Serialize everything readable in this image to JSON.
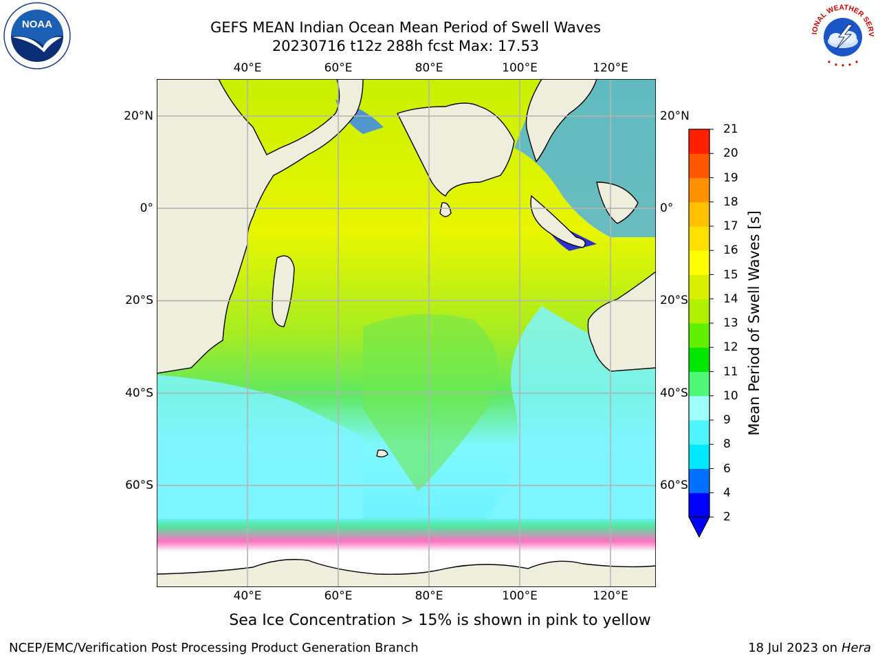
{
  "title": {
    "line1": "GEFS MEAN Indian Ocean Mean Period of Swell Waves",
    "line2": "20230716 t12z 288h fcst   Max: 17.53"
  },
  "map": {
    "lon_labels": [
      "40°E",
      "60°E",
      "80°E",
      "100°E",
      "120°E"
    ],
    "lat_labels": [
      "20°N",
      "0°",
      "20°S",
      "40°S",
      "60°S"
    ],
    "lon_values": [
      40,
      60,
      80,
      100,
      120
    ],
    "lat_values": [
      20,
      0,
      -20,
      -40,
      -60
    ],
    "lon_range": [
      20,
      130
    ],
    "lat_range": [
      28,
      -82
    ],
    "colors": {
      "land": "#efeddc",
      "grid": "#b4b4b4",
      "ice_free": "#ffffff"
    }
  },
  "colorbar": {
    "title": "Mean Period of Swell Waves [s]",
    "ticks": [
      "2",
      "4",
      "6",
      "8",
      "9",
      "10",
      "11",
      "12",
      "13",
      "14",
      "15",
      "16",
      "17",
      "18",
      "19",
      "20",
      "21"
    ],
    "colors": [
      "#0000ff",
      "#0070ff",
      "#00e8ff",
      "#50f4ff",
      "#a0fffa",
      "#50f878",
      "#00e600",
      "#60f000",
      "#b0f000",
      "#d8f000",
      "#ffff00",
      "#ffe000",
      "#ffc000",
      "#ff9000",
      "#ff5800",
      "#ff2000"
    ],
    "extend": "min"
  },
  "caption": "Sea Ice Concentration > 15% is shown in pink to yellow",
  "footer": {
    "left": "NCEP/EMC/Verification Post Processing Product Generation Branch",
    "date": "18 Jul 2023 on ",
    "machine": "Hera"
  },
  "logos": {
    "left": "noaa-logo",
    "left_text": "NOAA",
    "right": "nws-logo",
    "right_text": "NATIONAL WEATHER SERVICE"
  }
}
